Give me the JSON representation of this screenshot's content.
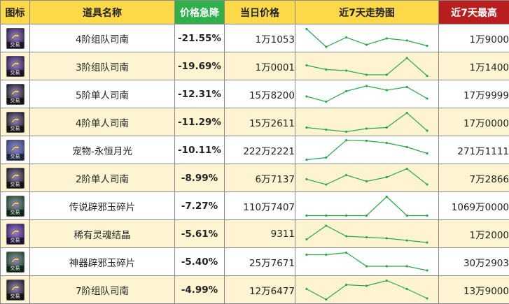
{
  "headers": {
    "icon": "图标",
    "name": "道具名称",
    "drop": "价格急降",
    "price": "当日价格",
    "trend": "近7天走势图",
    "max": "近7天最高"
  },
  "icon_badge": "交易",
  "colors": {
    "header_bg": "#fcd948",
    "drop_header_bg": "#2fb04a",
    "max_header_bg": "#b81e1e",
    "drop_text": "#2b9a3c",
    "even_row_bg": "#fff4d2",
    "trend_line": "#2ba84a"
  },
  "rows": [
    {
      "icon": "navigator-purple-icon",
      "icon_color": "#3b2a5e",
      "name": "4阶组队司南",
      "drop": "-21.55%",
      "price": "1万1053",
      "max": "1万9000",
      "trend": [
        0.95,
        0.1,
        0.55,
        0.2,
        0.5,
        0.4,
        0.15
      ]
    },
    {
      "icon": "navigator-purple-icon",
      "icon_color": "#3b2a5e",
      "name": "3阶组队司南",
      "drop": "-19.69%",
      "price": "1万0001",
      "max": "1万1400",
      "trend": [
        0.55,
        0.35,
        0.3,
        0.1,
        0.1,
        0.9,
        0.05
      ]
    },
    {
      "icon": "navigator-dark-icon",
      "icon_color": "#2a2a2a",
      "name": "5阶单人司南",
      "drop": "-12.31%",
      "price": "15万8200",
      "max": "17万9999",
      "trend": [
        0.4,
        0.15,
        0.65,
        0.9,
        0.7,
        0.85,
        0.3
      ]
    },
    {
      "icon": "navigator-dark-icon",
      "icon_color": "#2a2a2a",
      "name": "4阶单人司南",
      "drop": "-11.29%",
      "price": "15万2611",
      "max": "17万0000",
      "trend": [
        0.25,
        0.15,
        0.05,
        0.2,
        0.25,
        0.95,
        0.1
      ]
    },
    {
      "icon": "moon-orb-icon",
      "icon_color": "#3a4f8c",
      "name": "宠物-永恒月光",
      "drop": "-10.11%",
      "price": "222万2221",
      "max": "271万1111",
      "trend": [
        0.05,
        0.15,
        0.98,
        0.95,
        0.85,
        0.65,
        0.35
      ]
    },
    {
      "icon": "navigator-dark-icon",
      "icon_color": "#2a2a2a",
      "name": "2阶单人司南",
      "drop": "-8.99%",
      "price": "6万7137",
      "max": "7万2866",
      "trend": [
        0.45,
        0.2,
        0.65,
        0.35,
        0.55,
        0.95,
        0.2
      ]
    },
    {
      "icon": "jade-shard-icon",
      "icon_color": "#1f5a2a",
      "name": "传说辟邪玉碎片",
      "drop": "-7.27%",
      "price": "110万7407",
      "max": "1069万0000",
      "trend": [
        0.05,
        0.05,
        0.05,
        0.05,
        0.95,
        0.05,
        0.05
      ]
    },
    {
      "icon": "soul-crystal-icon",
      "icon_color": "#4a2a7a",
      "name": "稀有灵魂结晶",
      "drop": "-5.61%",
      "price": "9311",
      "max": "1万2000",
      "trend": [
        0.25,
        0.9,
        0.4,
        0.35,
        0.3,
        0.2,
        0.1
      ]
    },
    {
      "icon": "jade-shard-icon",
      "icon_color": "#1f5a2a",
      "name": "神器辟邪玉碎片",
      "drop": "-5.40%",
      "price": "25万7671",
      "max": "30万2903",
      "trend": [
        0.85,
        0.85,
        0.95,
        0.3,
        0.3,
        0.3,
        0.1
      ]
    },
    {
      "icon": "navigator-dark-icon",
      "icon_color": "#2a2a2a",
      "name": "7阶组队司南",
      "drop": "-4.99%",
      "price": "12万6477",
      "max": "13万9000",
      "trend": [
        0.55,
        0.05,
        0.75,
        0.7,
        0.95,
        0.55,
        0.1
      ]
    }
  ]
}
